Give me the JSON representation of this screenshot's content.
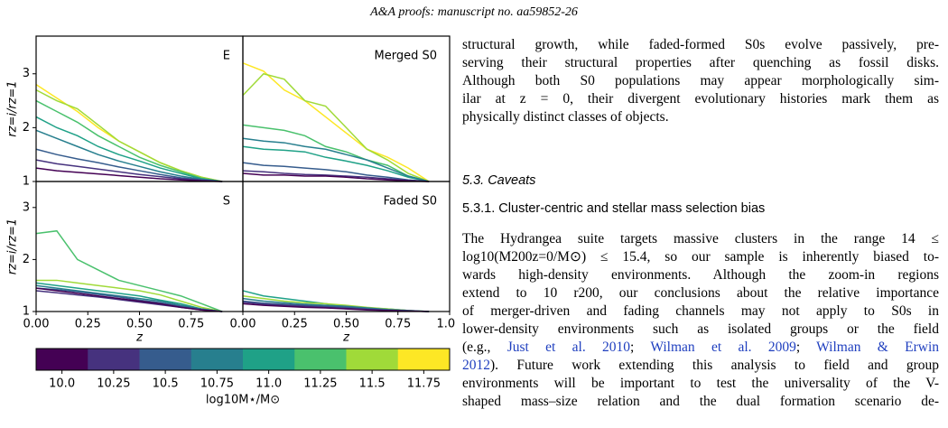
{
  "header": "A&A proofs: manuscript no. aa59852-26",
  "chart_data": [
    {
      "type": "line",
      "panel_label": "E",
      "y_label": "rz=i/rz=1",
      "x": [
        0,
        0.1,
        0.2,
        0.3,
        0.4,
        0.5,
        0.6,
        0.7,
        0.8,
        0.9
      ],
      "xlim": [
        0,
        1
      ],
      "ylim": [
        1,
        3.7
      ],
      "yticks": [
        1,
        2,
        3
      ],
      "series": [
        {
          "color": "#fde725",
          "values": [
            2.8,
            2.55,
            2.3,
            2.0,
            1.75,
            1.55,
            1.35,
            1.2,
            1.08,
            1.0
          ]
        },
        {
          "color": "#a0da39",
          "values": [
            2.7,
            2.5,
            2.35,
            2.05,
            1.75,
            1.55,
            1.35,
            1.2,
            1.08,
            1.0
          ]
        },
        {
          "color": "#4ac16d",
          "values": [
            2.5,
            2.3,
            2.1,
            1.85,
            1.65,
            1.45,
            1.3,
            1.18,
            1.06,
            1.0
          ]
        },
        {
          "color": "#1fa187",
          "values": [
            2.2,
            2.0,
            1.85,
            1.65,
            1.5,
            1.38,
            1.25,
            1.15,
            1.05,
            1.0
          ]
        },
        {
          "color": "#277f8e",
          "values": [
            1.95,
            1.8,
            1.65,
            1.5,
            1.38,
            1.28,
            1.18,
            1.1,
            1.04,
            1.0
          ]
        },
        {
          "color": "#365c8d",
          "values": [
            1.6,
            1.5,
            1.42,
            1.35,
            1.27,
            1.2,
            1.13,
            1.07,
            1.03,
            1.0
          ]
        },
        {
          "color": "#46327e",
          "values": [
            1.4,
            1.33,
            1.28,
            1.23,
            1.18,
            1.13,
            1.09,
            1.05,
            1.02,
            1.0
          ]
        },
        {
          "color": "#440154",
          "values": [
            1.25,
            1.2,
            1.17,
            1.14,
            1.11,
            1.08,
            1.05,
            1.03,
            1.01,
            1.0
          ]
        }
      ]
    },
    {
      "type": "line",
      "panel_label": "Merged S0",
      "x": [
        0,
        0.1,
        0.2,
        0.3,
        0.4,
        0.5,
        0.6,
        0.7,
        0.8,
        0.9
      ],
      "xlim": [
        0,
        1
      ],
      "ylim": [
        1,
        3.7
      ],
      "series": [
        {
          "color": "#fde725",
          "values": [
            3.2,
            3.05,
            2.7,
            2.5,
            2.2,
            1.9,
            1.6,
            1.45,
            1.25,
            1.0
          ]
        },
        {
          "color": "#a0da39",
          "values": [
            2.6,
            3.0,
            2.9,
            2.5,
            2.4,
            2.0,
            1.6,
            1.4,
            1.15,
            1.0
          ]
        },
        {
          "color": "#4ac16d",
          "values": [
            2.05,
            2.0,
            1.95,
            1.85,
            1.65,
            1.55,
            1.4,
            1.3,
            1.1,
            1.0
          ]
        },
        {
          "color": "#1fa187",
          "values": [
            1.65,
            1.6,
            1.58,
            1.55,
            1.45,
            1.38,
            1.3,
            1.2,
            1.08,
            1.0
          ]
        },
        {
          "color": "#277f8e",
          "values": [
            1.8,
            1.75,
            1.72,
            1.65,
            1.6,
            1.5,
            1.4,
            1.25,
            1.1,
            1.0
          ]
        },
        {
          "color": "#365c8d",
          "values": [
            1.35,
            1.3,
            1.28,
            1.25,
            1.22,
            1.18,
            1.12,
            1.08,
            1.03,
            1.0
          ]
        },
        {
          "color": "#46327e",
          "values": [
            1.2,
            1.18,
            1.15,
            1.13,
            1.12,
            1.1,
            1.08,
            1.05,
            1.02,
            1.0
          ]
        },
        {
          "color": "#440154",
          "values": [
            1.15,
            1.12,
            1.12,
            1.1,
            1.1,
            1.08,
            1.05,
            1.03,
            1.01,
            1.0
          ]
        }
      ]
    },
    {
      "type": "line",
      "panel_label": "S",
      "y_label": "rz=i/rz=1",
      "x_label": "z",
      "x": [
        0,
        0.1,
        0.2,
        0.3,
        0.4,
        0.5,
        0.6,
        0.7,
        0.8,
        0.9
      ],
      "xlim": [
        0,
        1
      ],
      "ylim": [
        1,
        3.5
      ],
      "yticks": [
        1,
        2,
        3
      ],
      "xticks": [
        {
          "value": 0,
          "label": "0.00"
        },
        0.25,
        {
          "value": 0.5,
          "label": "0.50"
        },
        0.75
      ],
      "series": [
        {
          "color": "#4ac16d",
          "values": [
            2.5,
            2.55,
            2.0,
            1.8,
            1.6,
            1.5,
            1.4,
            1.3,
            1.15,
            1.0
          ]
        },
        {
          "color": "#a0da39",
          "values": [
            1.6,
            1.6,
            1.55,
            1.5,
            1.45,
            1.4,
            1.32,
            1.2,
            1.08,
            1.0
          ]
        },
        {
          "color": "#1fa187",
          "values": [
            1.55,
            1.5,
            1.45,
            1.4,
            1.35,
            1.3,
            1.22,
            1.15,
            1.05,
            1.0
          ]
        },
        {
          "color": "#277f8e",
          "values": [
            1.5,
            1.45,
            1.4,
            1.35,
            1.3,
            1.25,
            1.2,
            1.12,
            1.05,
            1.0
          ]
        },
        {
          "color": "#365c8d",
          "values": [
            1.45,
            1.42,
            1.38,
            1.33,
            1.28,
            1.22,
            1.17,
            1.1,
            1.04,
            1.0
          ]
        },
        {
          "color": "#46327e",
          "values": [
            1.4,
            1.36,
            1.32,
            1.28,
            1.23,
            1.18,
            1.13,
            1.08,
            1.03,
            1.0
          ]
        },
        {
          "color": "#440154",
          "values": [
            1.45,
            1.4,
            1.35,
            1.3,
            1.25,
            1.2,
            1.15,
            1.08,
            1.03,
            1.0
          ]
        }
      ]
    },
    {
      "type": "line",
      "panel_label": "Faded S0",
      "x_label": "z",
      "x": [
        0,
        0.1,
        0.2,
        0.3,
        0.4,
        0.5,
        0.6,
        0.7,
        0.8,
        0.9
      ],
      "xlim": [
        0,
        1
      ],
      "ylim": [
        1,
        3.5
      ],
      "xticks": [
        {
          "value": 0,
          "label": "0.00"
        },
        0.25,
        {
          "value": 0.5,
          "label": "0.50"
        },
        0.75,
        {
          "value": 1,
          "label": "1.00"
        }
      ],
      "series": [
        {
          "color": "#1fa187",
          "values": [
            1.4,
            1.3,
            1.25,
            1.2,
            1.15,
            1.1,
            1.07,
            1.05,
            1.02,
            1.0
          ]
        },
        {
          "color": "#a0da39",
          "values": [
            1.3,
            1.25,
            1.2,
            1.17,
            1.15,
            1.12,
            1.08,
            1.05,
            1.02,
            1.0
          ]
        },
        {
          "color": "#277f8e",
          "values": [
            1.25,
            1.2,
            1.17,
            1.14,
            1.12,
            1.1,
            1.07,
            1.04,
            1.02,
            1.0
          ]
        },
        {
          "color": "#365c8d",
          "values": [
            1.2,
            1.16,
            1.14,
            1.12,
            1.1,
            1.08,
            1.05,
            1.03,
            1.01,
            1.0
          ]
        },
        {
          "color": "#46327e",
          "values": [
            1.18,
            1.14,
            1.12,
            1.1,
            1.08,
            1.06,
            1.04,
            1.02,
            1.01,
            1.0
          ]
        },
        {
          "color": "#440154",
          "values": [
            1.15,
            1.12,
            1.1,
            1.08,
            1.07,
            1.05,
            1.03,
            1.02,
            1.01,
            1.0
          ]
        }
      ]
    }
  ],
  "colorbar": {
    "colors": [
      "#440154",
      "#46327e",
      "#365c8d",
      "#277f8e",
      "#1fa187",
      "#4ac16d",
      "#a0da39",
      "#fde725"
    ],
    "lim": [
      9.875,
      11.875
    ],
    "ticks": [
      {
        "value": 10,
        "label": "10.0"
      },
      10.25,
      10.5,
      10.75,
      {
        "value": 11,
        "label": "11.0"
      },
      11.25,
      11.5,
      11.75
    ],
    "label": "log10M⋆/M⊙"
  },
  "body": {
    "paragraph_1": [
      "structural growth, while faded-formed S0s evolve passively, pre-",
      "serving their structural properties after quenching as fossil disks.",
      "Although both S0 populations may appear morphologically sim-",
      "ilar at z = 0, their divergent evolutionary histories mark them as",
      "physically distinct classes of objects."
    ],
    "section": "5.3. Caveats",
    "subsection": "5.3.1. Cluster-centric and stellar mass selection bias",
    "paragraph_2": [
      "The Hydrangea suite targets massive clusters in the range 14 ≤",
      "log10(M200z=0/M⊙) ≤ 15.4, so our sample is inherently biased to-",
      "wards high-density environments. Although the zoom-in regions",
      "extend to 10 r200, our conclusions about the relative importance",
      "of merger-driven and fading channels may not apply to S0s in",
      "lower-density environments such as isolated groups or the field"
    ],
    "citation_line": [
      "(e.g., ",
      "Just et al. 2010",
      "; ",
      "Wilman et al. 2009",
      "; ",
      "Wilman & Erwin"
    ],
    "citation_line_2": [
      "2012",
      "). Future work extending this analysis to field and group"
    ],
    "paragraph_3": [
      "environments will be important to test the universality of the V-",
      "shaped mass–size relation and the dual formation scenario de-"
    ]
  }
}
